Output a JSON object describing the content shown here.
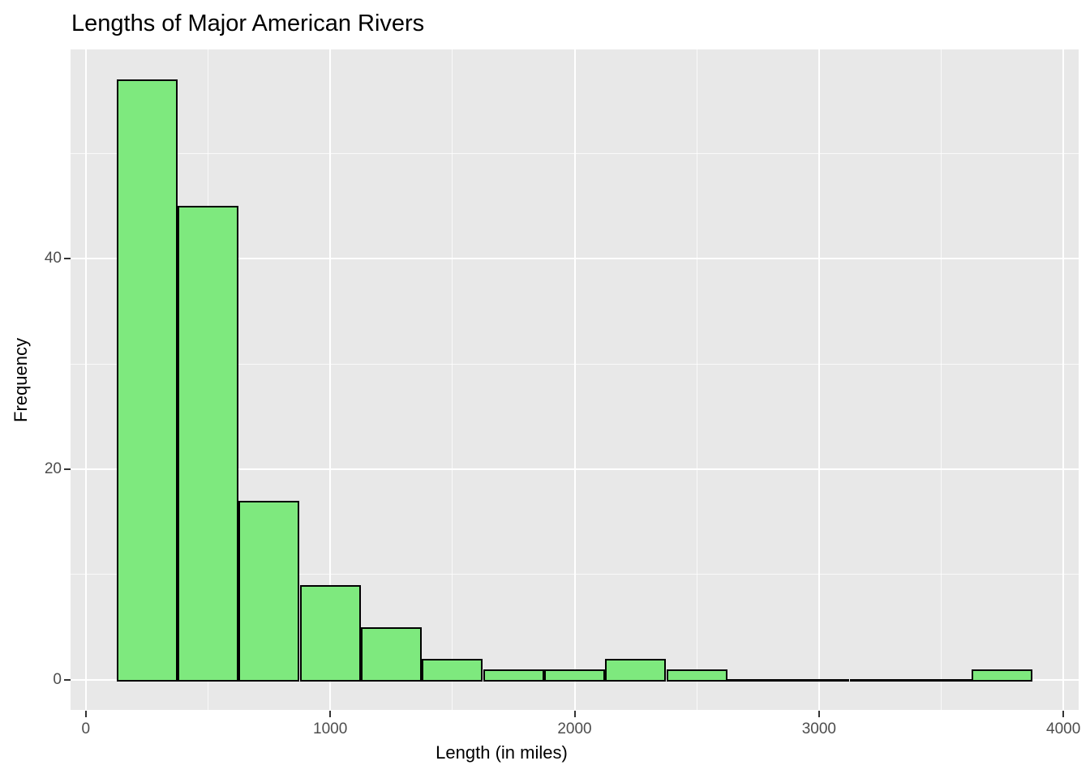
{
  "chart_data": {
    "type": "bar",
    "subtype": "histogram",
    "title": "Lengths of Major American Rivers",
    "xlabel": "Length (in miles)",
    "ylabel": "Frequency",
    "bin_width": 250,
    "bin_edges": [
      125,
      375,
      625,
      875,
      1125,
      1375,
      1625,
      1875,
      2125,
      2375,
      2625,
      2875,
      3125,
      3375,
      3625,
      3875
    ],
    "counts": [
      57,
      45,
      17,
      9,
      5,
      2,
      1,
      1,
      2,
      1,
      0,
      0,
      0,
      0,
      1
    ],
    "x_ticks": [
      0,
      1000,
      2000,
      3000,
      4000
    ],
    "x_tick_labels": [
      "0",
      "1000",
      "2000",
      "3000",
      "4000"
    ],
    "y_ticks": [
      0,
      20,
      40
    ],
    "y_tick_labels": [
      "0",
      "20",
      "40"
    ],
    "x_minor_ticks": [
      500,
      1500,
      2500,
      3500
    ],
    "y_minor_ticks": [
      10,
      30,
      50
    ],
    "xlim": [
      -62.5,
      4062.5
    ],
    "ylim": [
      -2.85,
      59.85
    ],
    "grid": true,
    "legend": "none",
    "colors": {
      "bar_fill": "#7ee97e",
      "bar_border": "#000000",
      "panel_background": "#e8e8e8",
      "gridline": "#ffffff",
      "tick_label": "#4d4d4d",
      "tick_mark": "#333333",
      "text": "#000000"
    }
  }
}
